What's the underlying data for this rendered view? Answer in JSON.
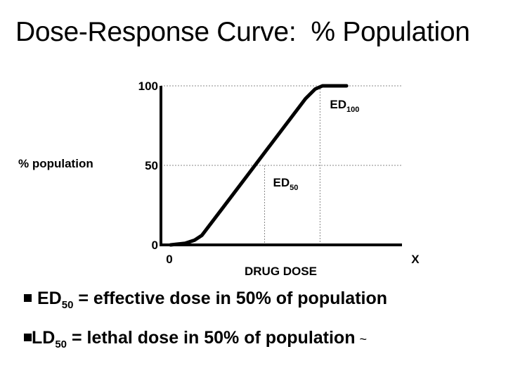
{
  "title": "Dose-Response Curve:  % Population",
  "chart_data": {
    "type": "line",
    "ylabel": "% population",
    "xlabel": "DRUG DOSE",
    "x_ticks": [
      "0",
      "X"
    ],
    "y_ticks": [
      "0",
      "50",
      "100"
    ],
    "ylim": [
      0,
      100
    ],
    "xlim": [
      0,
      1
    ],
    "grid": "dotted reference lines at 50 and 100, and at ED50 / ED100",
    "curve": {
      "x": [
        0.04,
        0.1,
        0.14,
        0.17,
        0.26,
        0.35,
        0.44,
        0.53,
        0.6,
        0.64,
        0.67,
        0.7,
        0.77
      ],
      "y": [
        0,
        1,
        3,
        6,
        24,
        42,
        60,
        78,
        92,
        98,
        100,
        100,
        100
      ]
    },
    "annotations": [
      {
        "label": "ED",
        "sub": "50",
        "x": 0.43,
        "y": 50
      },
      {
        "label": "ED",
        "sub": "100",
        "x": 0.66,
        "y": 100
      }
    ]
  },
  "bullets": [
    {
      "main": "ED",
      "sub": "50",
      "rest": " = effective dose in 50% of population",
      "suffix": ""
    },
    {
      "main": "LD",
      "sub": "50",
      "rest": " = lethal dose in 50% of population",
      "suffix": "~"
    }
  ],
  "colors": {
    "line": "#000000",
    "reference": "#888888",
    "background": "#ffffff"
  }
}
